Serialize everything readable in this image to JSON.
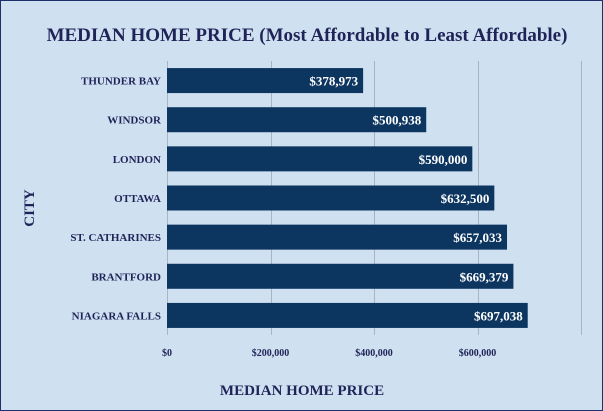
{
  "chart_data": {
    "type": "bar",
    "orientation": "horizontal",
    "title": "MEDIAN HOME PRICE (Most Affordable to Least Affordable)",
    "xlabel": "MEDIAN HOME PRICE",
    "ylabel": "CITY",
    "categories": [
      "THUNDER BAY",
      "WINDSOR",
      "LONDON",
      "OTTAWA",
      "ST. CATHARINES",
      "BRANTFORD",
      "NIAGARA FALLS"
    ],
    "values": [
      378973,
      500938,
      590000,
      632500,
      657033,
      669379,
      697038
    ],
    "data_labels": [
      "$378,973",
      "$500,938",
      "$590,000",
      "$632,500",
      "$657,033",
      "$669,379",
      "$697,038"
    ],
    "xlim": [
      0,
      800000
    ],
    "xticks": [
      0,
      200000,
      400000,
      600000
    ],
    "xtick_labels": [
      "$0",
      "$200,000",
      "$400,000",
      "$600,000"
    ],
    "grid": "vertical",
    "legend": "none",
    "colors": {
      "bar": "#0c3560",
      "background": "#cfe0f1",
      "text": "#1f2357",
      "label": "#ffffff"
    }
  }
}
